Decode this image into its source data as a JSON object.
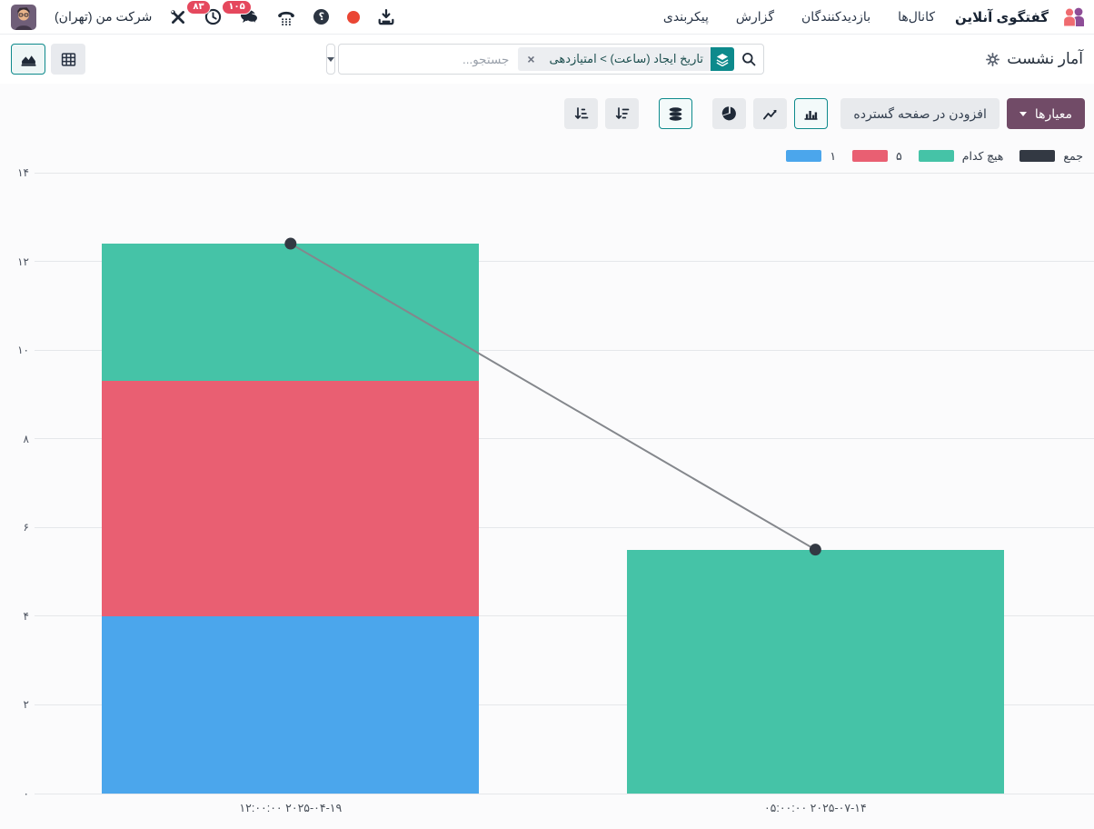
{
  "navbar": {
    "app_name": "گفتگوی آنلاین",
    "menu_items": [
      "کانال‌ها",
      "بازدیدکنندگان",
      "گزارش",
      "پیکربندی"
    ],
    "company_name": "شرکت من (تهران)",
    "activity_badge": "۸۳",
    "message_badge": "۱۰۵",
    "help_glyph": "؟"
  },
  "control_panel": {
    "title": "آمار نشست",
    "search_placeholder": "جستجو...",
    "facet_label": "تاریخ ایجاد (ساعت) > امتیازدهی",
    "facet_remove_glyph": "×"
  },
  "toolbar": {
    "measures_label": "معیارها",
    "insert_in_spreadsheet_label": "افزودن در صفحه گسترده"
  },
  "colors": {
    "primary": "#714b67",
    "accent_teal": "#0d8a8c",
    "bar_blue": "#4ba6ec",
    "bar_red": "#e95f72",
    "bar_teal": "#45c3a7",
    "total_dark": "#333943",
    "badge_red": "#e5485d"
  },
  "chart_data": {
    "type": "bar",
    "stacked": true,
    "title": "",
    "categories": [
      "۲۰۲۵-۰۴-۱۹ ۱۲:۰۰:۰۰",
      "۲۰۲۵-۰۷-۱۴ ۰۵:۰۰:۰۰"
    ],
    "series": [
      {
        "name": "۱",
        "type": "bar",
        "color": "#4ba6ec",
        "values": [
          4,
          0
        ]
      },
      {
        "name": "۵",
        "type": "bar",
        "color": "#e95f72",
        "values": [
          5.3,
          0
        ]
      },
      {
        "name": "هیچ کدام",
        "type": "bar",
        "color": "#45c3a7",
        "values": [
          3.1,
          5.5
        ]
      },
      {
        "name": "جمع",
        "type": "line",
        "color": "#333943",
        "values": [
          12.4,
          5.5
        ]
      }
    ],
    "legend": [
      {
        "label": "جمع",
        "color": "#333943"
      },
      {
        "label": "هیچ کدام",
        "color": "#45c3a7"
      },
      {
        "label": "۵",
        "color": "#e95f72"
      },
      {
        "label": "۱",
        "color": "#4ba6ec"
      }
    ],
    "y_axis": {
      "min": 0,
      "max": 14,
      "tick_step": 2,
      "tick_labels": [
        "۰",
        "۲",
        "۴",
        "۶",
        "۸",
        "۱۰",
        "۱۲",
        "۱۴"
      ]
    },
    "grid": true,
    "legend_position": "top-right"
  }
}
